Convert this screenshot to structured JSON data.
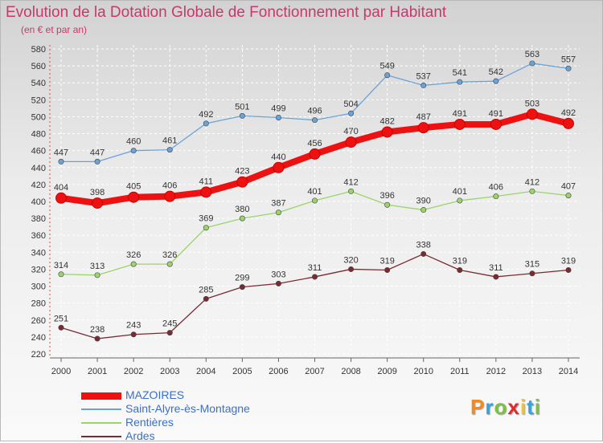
{
  "title": "Evolution de la Dotation Globale de Fonctionnement par Habitant",
  "subtitle": "(en € et par an)",
  "logo": {
    "text": "Proxiti",
    "colors": [
      "#f28a1e",
      "#3aa2d8",
      "#7cc242",
      "#e2292b",
      "#f2c51f",
      "#3aa2d8",
      "#7cc242"
    ]
  },
  "chart_data": {
    "type": "line",
    "x": [
      "2000",
      "2001",
      "2002",
      "2003",
      "2004",
      "2005",
      "2006",
      "2007",
      "2008",
      "2009",
      "2010",
      "2011",
      "2012",
      "2013",
      "2014"
    ],
    "ylim": [
      220,
      580
    ],
    "yticks": [
      220,
      240,
      260,
      280,
      300,
      320,
      340,
      360,
      380,
      400,
      420,
      440,
      460,
      480,
      500,
      520,
      540,
      560,
      580
    ],
    "grid": true,
    "legend_position": "bottom-left",
    "series": [
      {
        "name": "MAZOIRES",
        "color": "#ee1111",
        "values": [
          404,
          398,
          405,
          406,
          411,
          423,
          440,
          456,
          470,
          482,
          487,
          491,
          491,
          503,
          492
        ]
      },
      {
        "name": "Saint-Alyre-ès-Montagne",
        "color": "#6aa3d8",
        "values": [
          447,
          447,
          460,
          461,
          492,
          501,
          499,
          496,
          504,
          549,
          537,
          541,
          542,
          563,
          557
        ]
      },
      {
        "name": "Rentières",
        "color": "#9ad46a",
        "values": [
          314,
          313,
          326,
          326,
          369,
          380,
          387,
          401,
          412,
          396,
          390,
          401,
          406,
          412,
          407
        ]
      },
      {
        "name": "Ardes",
        "color": "#7a2a32",
        "values": [
          251,
          238,
          243,
          245,
          285,
          299,
          303,
          311,
          320,
          319,
          338,
          319,
          311,
          315,
          319
        ]
      }
    ]
  }
}
